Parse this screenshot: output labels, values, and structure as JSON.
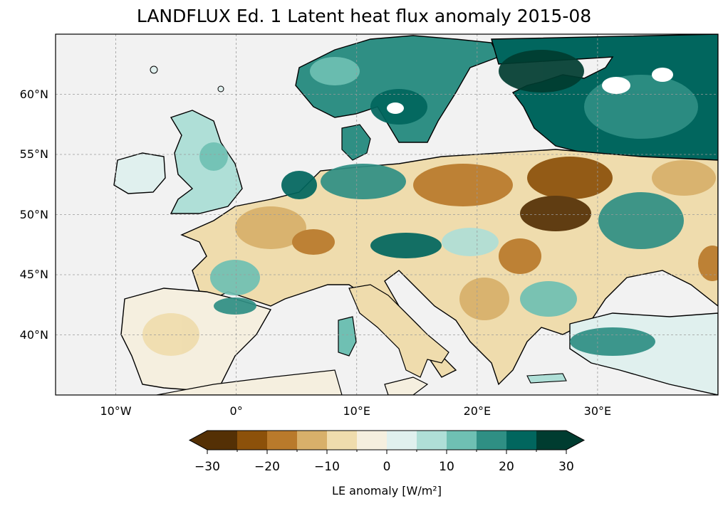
{
  "title": "LANDFLUX Ed. 1 Latent heat flux anomaly 2015-08",
  "map": {
    "lon_range": [
      -15,
      40
    ],
    "lat_range": [
      35,
      65
    ],
    "lat_ticks": [
      {
        "value": 60,
        "label": "60°N"
      },
      {
        "value": 55,
        "label": "55°N"
      },
      {
        "value": 50,
        "label": "50°N"
      },
      {
        "value": 45,
        "label": "45°N"
      },
      {
        "value": 40,
        "label": "40°N"
      }
    ],
    "lon_ticks": [
      {
        "value": -10,
        "label": "10°W"
      },
      {
        "value": 0,
        "label": "0°"
      },
      {
        "value": 10,
        "label": "10°E"
      },
      {
        "value": 20,
        "label": "20°E"
      },
      {
        "value": 30,
        "label": "30°E"
      }
    ],
    "gridlines": true,
    "ocean_color": "#f2f2f2",
    "coastline_color": "#000000"
  },
  "colorbar": {
    "label": "LE anomaly [W/m²]",
    "range": [
      -30,
      30
    ],
    "extend": "both",
    "tick_labels": [
      "−30",
      "−20",
      "−10",
      "0",
      "10",
      "20",
      "30"
    ],
    "tick_values": [
      -30,
      -20,
      -10,
      0,
      10,
      20,
      30
    ],
    "level_boundaries": [
      -30,
      -25,
      -20,
      -15,
      -10,
      -5,
      0,
      5,
      10,
      15,
      20,
      25,
      30
    ],
    "colors": [
      "#543005",
      "#8c510a",
      "#b97a2b",
      "#d8b06a",
      "#efdcad",
      "#f5efdf",
      "#e0f0ee",
      "#afdfd7",
      "#6fc0b3",
      "#2f8f84",
      "#01665e",
      "#003c30"
    ],
    "under_color": "#543005",
    "over_color": "#003c30"
  }
}
